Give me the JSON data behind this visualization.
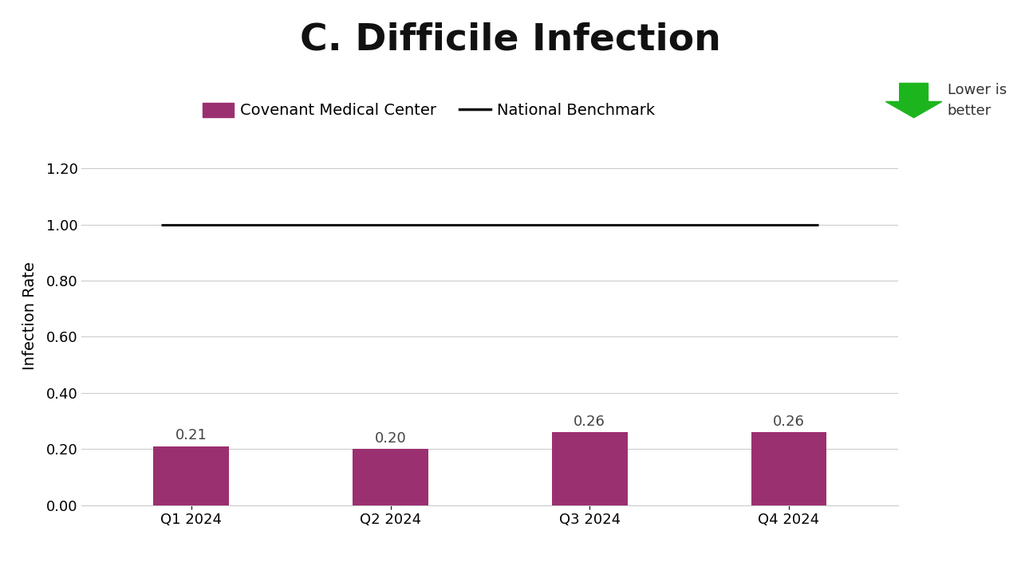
{
  "title": "C. Difficile Infection",
  "ylabel": "Infection Rate",
  "categories": [
    "Q1 2024",
    "Q2 2024",
    "Q3 2024",
    "Q4 2024"
  ],
  "values": [
    0.21,
    0.2,
    0.26,
    0.26
  ],
  "bar_color": "#9B3070",
  "benchmark_value": 1.0,
  "benchmark_color": "#111111",
  "ylim": [
    0,
    1.35
  ],
  "yticks": [
    0.0,
    0.2,
    0.4,
    0.6,
    0.8,
    1.0,
    1.2
  ],
  "legend_bar_label": "Covenant Medical Center",
  "legend_line_label": "National Benchmark",
  "arrow_color": "#1DB51D",
  "lower_is_better_text": "Lower is\nbetter",
  "background_color": "#ffffff",
  "title_fontsize": 34,
  "axis_label_fontsize": 14,
  "tick_fontsize": 13,
  "legend_fontsize": 14,
  "bar_label_fontsize": 13,
  "annotation_fontsize": 13
}
